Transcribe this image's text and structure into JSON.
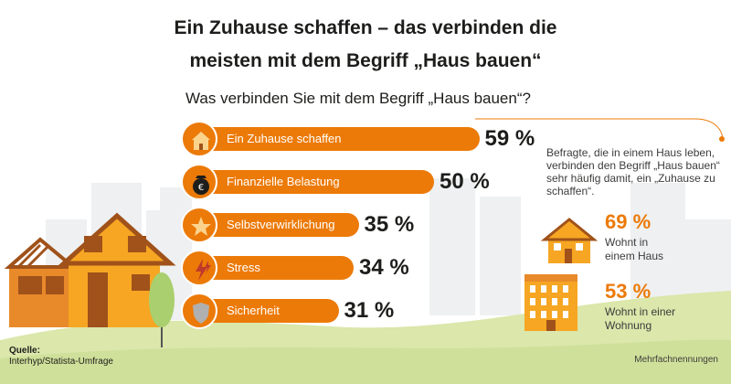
{
  "title_line1": "Ein Zuhause schaffen – das verbinden die",
  "title_line2": "meisten mit dem Begriff „Haus bauen“",
  "question": "Was verbinden Sie mit dem Begriff „Haus bauen“?",
  "chart_data": {
    "type": "bar",
    "orientation": "horizontal",
    "categories": [
      "Ein Zuhause schaffen",
      "Finanzielle Belastung",
      "Selbstverwirklichung",
      "Stress",
      "Sicherheit"
    ],
    "values": [
      59,
      50,
      35,
      34,
      31
    ],
    "value_labels": [
      "59 %",
      "50 %",
      "35 %",
      "34 %",
      "31 %"
    ],
    "icons": [
      "house-icon",
      "money-bag-icon",
      "star-icon",
      "lightning-icon",
      "shield-icon"
    ],
    "unit": "%",
    "bar_color": "#ec7a08"
  },
  "annotation": {
    "note": "Befragte, die in einem Haus leben, verbinden den Begriff „Haus bauen“ sehr häufig damit, ein „Zuhause zu schaffen“.",
    "stats": [
      {
        "value": "69 %",
        "label_line1": "Wohnt in",
        "label_line2": "einem Haus",
        "icon": "small-house-icon"
      },
      {
        "value": "53 %",
        "label_line1": "Wohnt in einer",
        "label_line2": "Wohnung",
        "icon": "apartment-building-icon"
      }
    ]
  },
  "source": {
    "label": "Quelle:",
    "text": "Interhyp/Statista-Umfrage"
  },
  "footnote": "Mehrfachnennungen",
  "colors": {
    "accent": "#ec7a08",
    "house_wall": "#f6a623",
    "roof": "#a0521a",
    "ground": "#d7e6a2",
    "city": "#eef0f0"
  }
}
